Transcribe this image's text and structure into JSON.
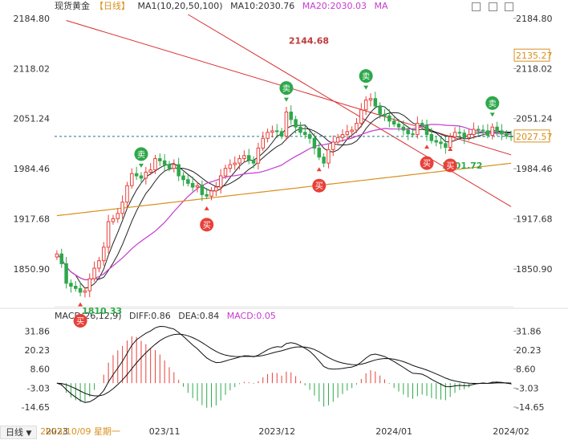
{
  "header": {
    "instrument": "现货黄金",
    "period_tag": "【日线】",
    "ma_group": "MA1(10,20,50,100)",
    "ma10": "MA10:2030.76",
    "ma20": "MA20:2030.03",
    "ma_extra": "MA"
  },
  "macd_legend": {
    "title": "MACD(26,12,9)",
    "diff": "DIFF:0.86",
    "dea": "DEA:0.84",
    "macd": "MACD:0.05"
  },
  "period_button": "日线",
  "colors": {
    "up": "#e8403a",
    "down": "#2ea84a",
    "ma_black": "#222222",
    "ma_magenta": "#c63ad1",
    "ma_orange": "#d8901e",
    "trend": "#d83030",
    "price_line": "#1a7a8a"
  },
  "chart_data": {
    "type": "candlestick",
    "price_axis": {
      "ylim": [
        1805,
        2190
      ],
      "ticks": [
        "2184.80",
        "2118.02",
        "2051.24",
        "1984.46",
        "1917.68",
        "1850.90"
      ],
      "tick_values": [
        2184.8,
        2118.02,
        2051.24,
        1984.46,
        1917.68,
        1850.9
      ]
    },
    "macd_axis": {
      "ylim": [
        -24,
        36
      ],
      "ticks": [
        "31.86",
        "20.23",
        "8.60",
        "-3.03",
        "-14.65"
      ],
      "tick_values": [
        31.86,
        20.23,
        8.6,
        -3.03,
        -14.65
      ]
    },
    "x_labels": [
      "2023",
      "2023/10/09 星期一",
      "023/11",
      "2023/12",
      "2024/01",
      "2024/02"
    ],
    "x_label_index": [
      0,
      5,
      23,
      47,
      72,
      97
    ],
    "current_price_label": "2027.57",
    "current_price": 2027.57,
    "ref_price_label": "2135.27",
    "ref_price": 2135.27,
    "annotations": {
      "high": {
        "label": "2144.68",
        "value": 2144.68,
        "index": 49
      },
      "low": {
        "label": "1810.33",
        "value": 1810.33,
        "index": 5
      },
      "local_low": {
        "label": "2001.72",
        "value": 2001.72,
        "index": 83
      }
    },
    "signals": [
      {
        "type": "sell",
        "label": "卖",
        "index": 18
      },
      {
        "type": "sell",
        "label": "卖",
        "index": 49
      },
      {
        "type": "sell",
        "label": "卖",
        "index": 66
      },
      {
        "type": "sell",
        "label": "卖",
        "index": 93
      },
      {
        "type": "buy",
        "label": "买",
        "index": 5
      },
      {
        "type": "buy",
        "label": "买",
        "index": 32
      },
      {
        "type": "buy",
        "label": "买",
        "index": 56
      },
      {
        "type": "buy",
        "label": "买",
        "index": 79
      },
      {
        "type": "buy",
        "label": "买",
        "index": 84
      }
    ],
    "close": [
      1871,
      1858,
      1832,
      1828,
      1825,
      1820,
      1822,
      1838,
      1852,
      1862,
      1880,
      1914,
      1918,
      1925,
      1940,
      1962,
      1978,
      1975,
      1972,
      1980,
      1983,
      1998,
      1995,
      1990,
      1985,
      1990,
      1975,
      1970,
      1965,
      1960,
      1962,
      1950,
      1948,
      1955,
      1960,
      1975,
      1985,
      1990,
      1992,
      1998,
      2002,
      1996,
      1992,
      2012,
      2025,
      2033,
      2035,
      2034,
      2028,
      2060,
      2050,
      2040,
      2033,
      2030,
      2025,
      2012,
      2000,
      1992,
      2010,
      2020,
      2026,
      2030,
      2034,
      2036,
      2045,
      2063,
      2076,
      2078,
      2068,
      2057,
      2055,
      2048,
      2044,
      2040,
      2036,
      2031,
      2030,
      2045,
      2043,
      2030,
      2022,
      2020,
      2018,
      2013,
      2027,
      2033,
      2032,
      2026,
      2030,
      2037,
      2036,
      2035,
      2029,
      2040,
      2035,
      2031,
      2028,
      2027
    ]
  }
}
